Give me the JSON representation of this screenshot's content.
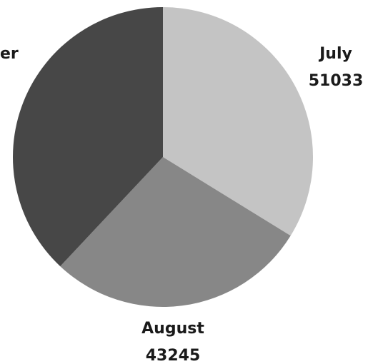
{
  "chart_data": {
    "type": "pie",
    "categories": [
      "July",
      "August",
      "er"
    ],
    "values": [
      51033,
      43245,
      null
    ],
    "data_labels": [
      {
        "category": "July",
        "value": "51033"
      },
      {
        "category": "August",
        "value": "43245"
      },
      {
        "category": "er",
        "value": ""
      }
    ],
    "colors": [
      "#c4c4c4",
      "#878787",
      "#474747"
    ],
    "title": "",
    "legend": "none"
  },
  "slice_fractions": [
    0.338,
    0.282,
    0.38
  ]
}
